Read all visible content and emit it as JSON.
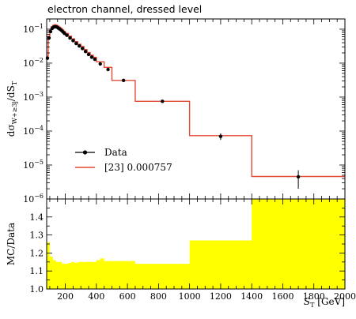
{
  "title": "electron channel, dressed level",
  "chart_data": {
    "type": "line",
    "x_label": "S_T [GeV]",
    "x_label_base": "S",
    "x_label_sub": "T",
    "x_label_unit": "[GeV]",
    "xlim": [
      80,
      2000
    ],
    "x_ticks": [
      200,
      400,
      600,
      800,
      1000,
      1200,
      1400,
      1600,
      1800,
      2000
    ],
    "top_panel": {
      "y_label": "dσ_{W+≥3j}/dS_T",
      "y_scale": "log",
      "ylim": [
        1e-06,
        0.2
      ],
      "y_ticks": [
        {
          "value": 1e-06,
          "mant": "10",
          "exp": "−6"
        },
        {
          "value": 1e-05,
          "mant": "10",
          "exp": "−5"
        },
        {
          "value": 0.0001,
          "mant": "10",
          "exp": "−4"
        },
        {
          "value": 0.001,
          "mant": "10",
          "exp": "−3"
        },
        {
          "value": 0.01,
          "mant": "10",
          "exp": "−2"
        },
        {
          "value": 0.1,
          "mant": "10",
          "exp": "−1"
        }
      ],
      "data": {
        "name": "Data",
        "color": "#000000",
        "points": [
          {
            "x": 85,
            "y": 0.014,
            "err": 0.001
          },
          {
            "x": 95,
            "y": 0.055,
            "err": 0.003
          },
          {
            "x": 105,
            "y": 0.085,
            "err": 0.004
          },
          {
            "x": 115,
            "y": 0.105,
            "err": 0.004
          },
          {
            "x": 125,
            "y": 0.115,
            "err": 0.004
          },
          {
            "x": 135,
            "y": 0.118,
            "err": 0.004
          },
          {
            "x": 145,
            "y": 0.115,
            "err": 0.004
          },
          {
            "x": 155,
            "y": 0.108,
            "err": 0.004
          },
          {
            "x": 165,
            "y": 0.1,
            "err": 0.004
          },
          {
            "x": 175,
            "y": 0.092,
            "err": 0.003
          },
          {
            "x": 185,
            "y": 0.083,
            "err": 0.003
          },
          {
            "x": 195,
            "y": 0.075,
            "err": 0.003
          },
          {
            "x": 210,
            "y": 0.066,
            "err": 0.003
          },
          {
            "x": 230,
            "y": 0.055,
            "err": 0.002
          },
          {
            "x": 250,
            "y": 0.046,
            "err": 0.002
          },
          {
            "x": 270,
            "y": 0.038,
            "err": 0.002
          },
          {
            "x": 290,
            "y": 0.032,
            "err": 0.0015
          },
          {
            "x": 310,
            "y": 0.027,
            "err": 0.0012
          },
          {
            "x": 330,
            "y": 0.022,
            "err": 0.001
          },
          {
            "x": 350,
            "y": 0.018,
            "err": 0.001
          },
          {
            "x": 370,
            "y": 0.015,
            "err": 0.0008
          },
          {
            "x": 390,
            "y": 0.013,
            "err": 0.0007
          },
          {
            "x": 425,
            "y": 0.0095,
            "err": 0.0005
          },
          {
            "x": 475,
            "y": 0.0065,
            "err": 0.0004
          },
          {
            "x": 575,
            "y": 0.0031,
            "err": 0.0002
          },
          {
            "x": 825,
            "y": 0.00075,
            "err": 4e-05
          },
          {
            "x": 1200,
            "y": 7e-05,
            "err": 1.5e-05
          },
          {
            "x": 1700,
            "y": 4.5e-06,
            "err": 2.5e-06
          }
        ]
      },
      "prediction": {
        "name": "[23] 0.000757",
        "color": "#e34a33",
        "edges": [
          80,
          90,
          100,
          110,
          120,
          130,
          140,
          150,
          160,
          170,
          180,
          190,
          200,
          220,
          240,
          260,
          280,
          300,
          320,
          340,
          360,
          380,
          400,
          450,
          500,
          650,
          1000,
          1400,
          2000
        ],
        "values": [
          0.016,
          0.062,
          0.096,
          0.119,
          0.131,
          0.135,
          0.131,
          0.123,
          0.114,
          0.105,
          0.095,
          0.086,
          0.075,
          0.062,
          0.052,
          0.043,
          0.036,
          0.031,
          0.025,
          0.0205,
          0.0171,
          0.0148,
          0.0109,
          0.0075,
          0.0031,
          0.00075,
          7.3e-05,
          4.6e-06
        ]
      },
      "legend": {
        "placement": "lower-left"
      }
    },
    "ratio_panel": {
      "y_label": "MC/Data",
      "ylim": [
        1.0,
        1.5
      ],
      "y_ticks": [
        1.0,
        1.1,
        1.2,
        1.3,
        1.4
      ],
      "fill_color": "#ffff00",
      "band_edges": [
        80,
        100,
        120,
        140,
        160,
        180,
        200,
        220,
        240,
        260,
        280,
        300,
        320,
        340,
        360,
        380,
        400,
        425,
        450,
        500,
        650,
        1000,
        1400,
        2000
      ],
      "band_values": [
        1.26,
        1.18,
        1.16,
        1.15,
        1.15,
        1.14,
        1.14,
        1.145,
        1.15,
        1.145,
        1.15,
        1.15,
        1.15,
        1.15,
        1.15,
        1.15,
        1.16,
        1.17,
        1.155,
        1.155,
        1.14,
        1.27,
        1.5
      ]
    }
  }
}
